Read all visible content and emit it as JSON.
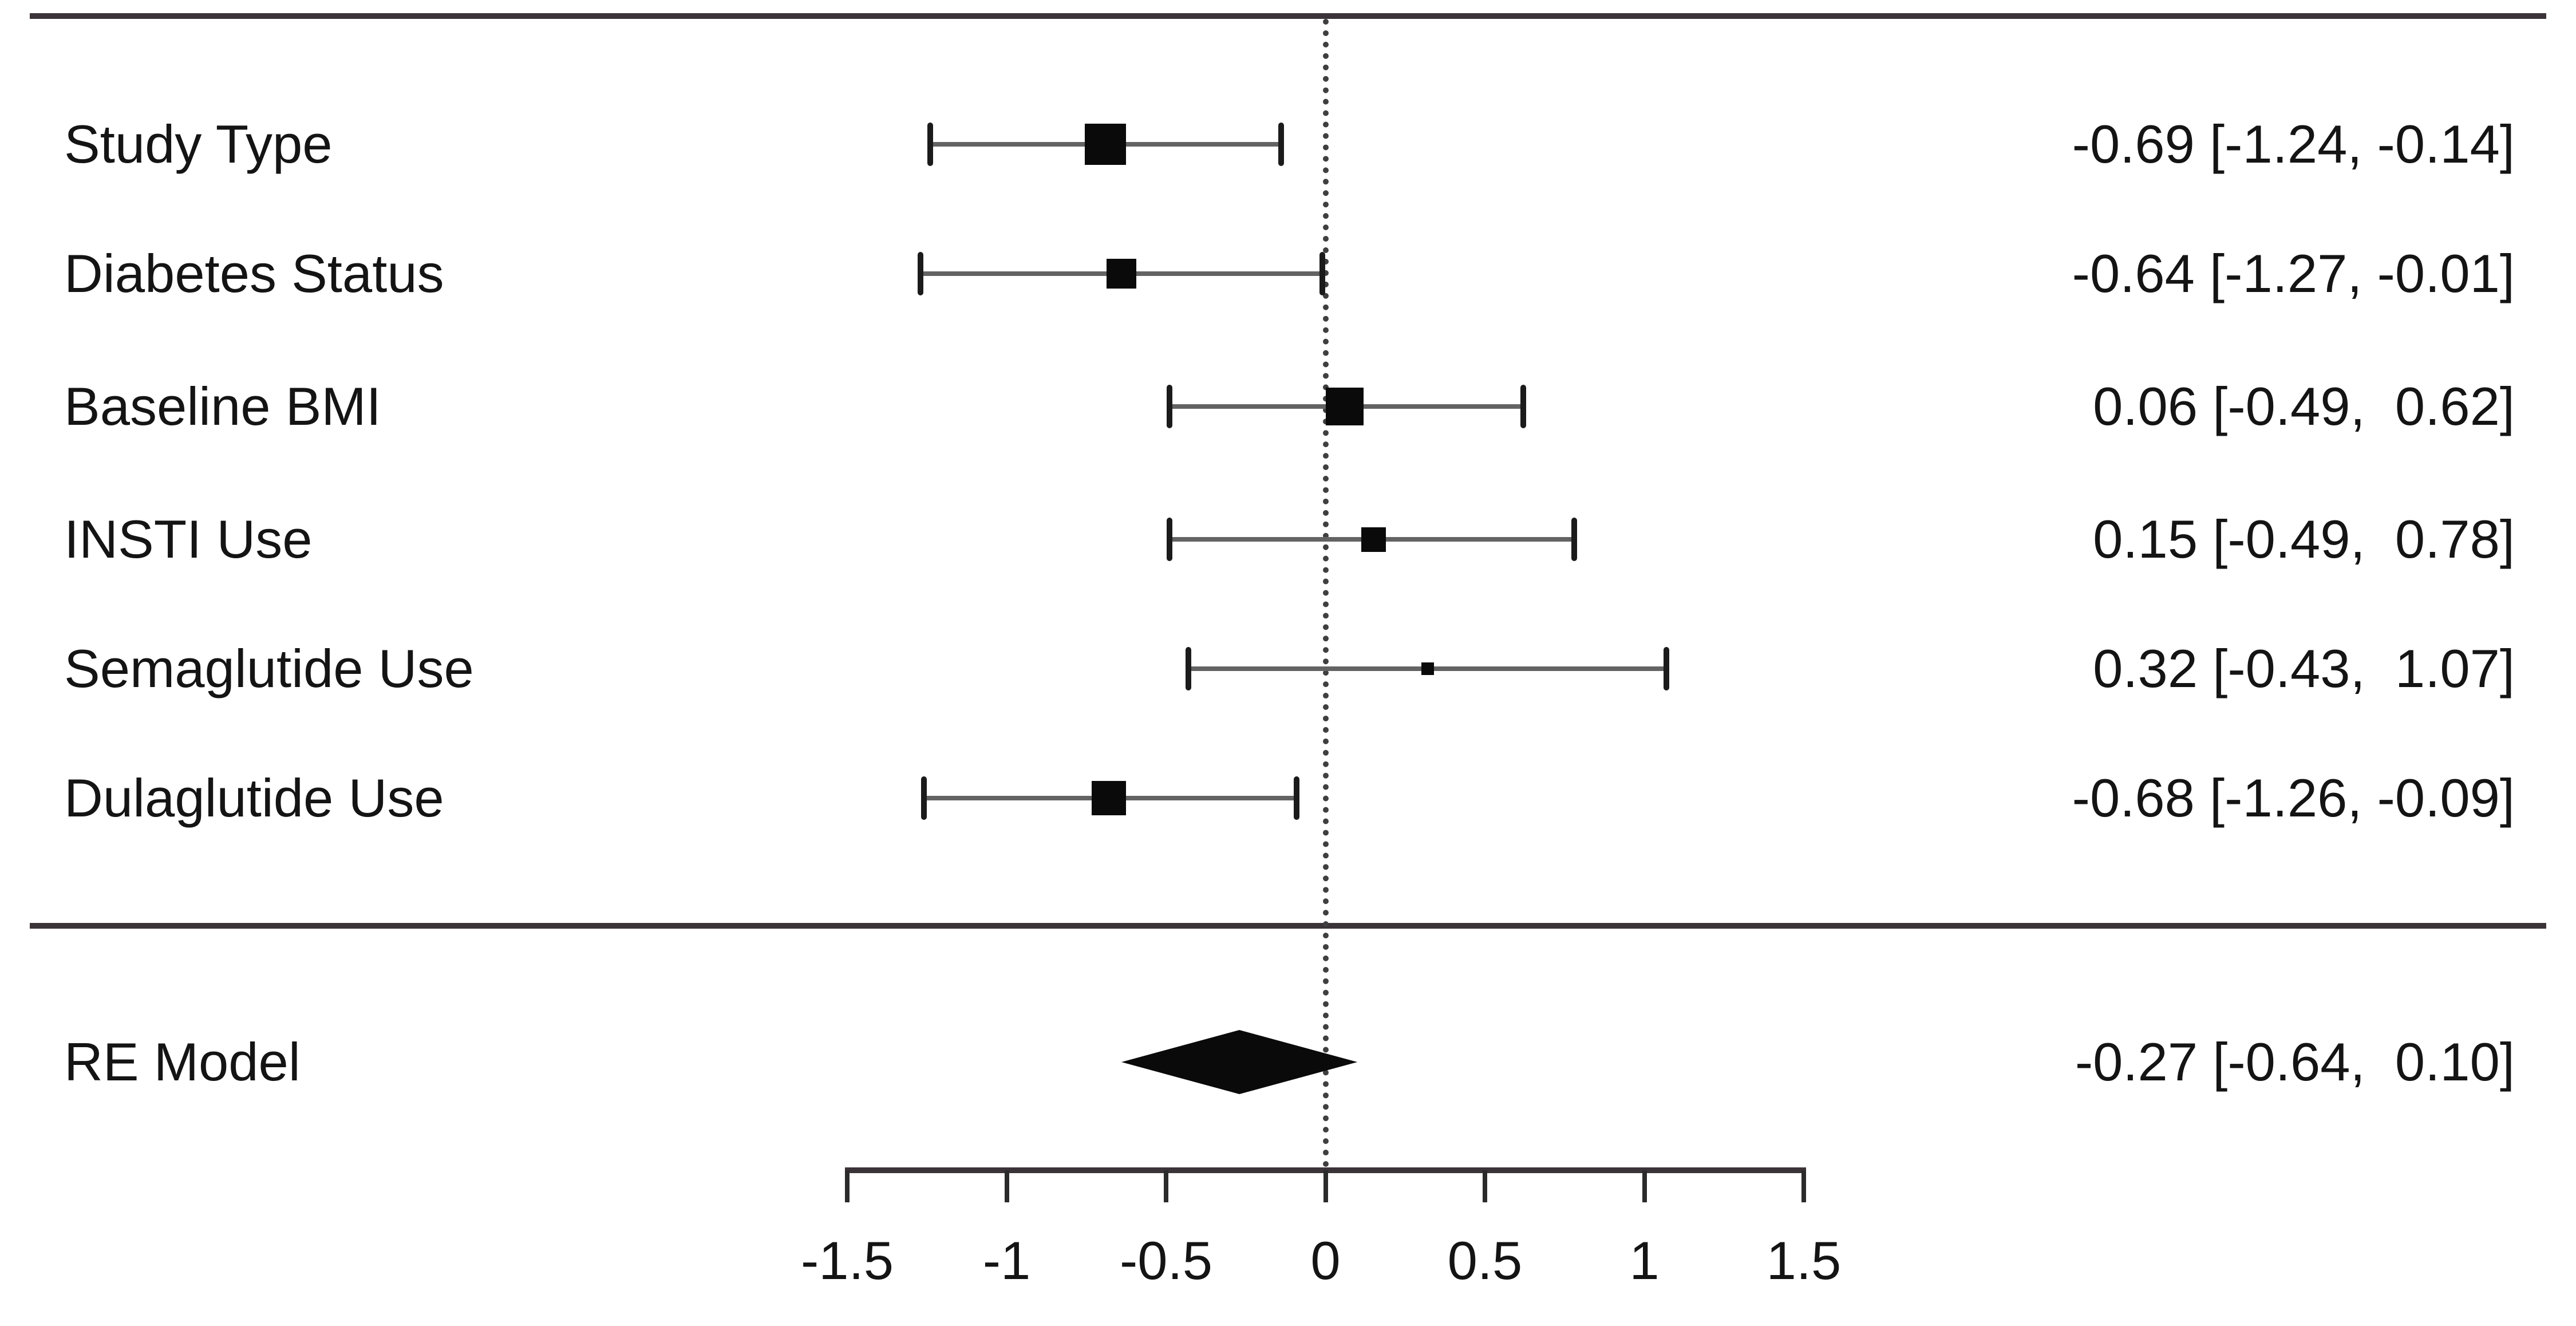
{
  "chart_data": {
    "type": "forest",
    "rows": [
      {
        "label": "Study Type",
        "estimate": -0.69,
        "ci_low": -1.24,
        "ci_high": -0.14,
        "annotation": "-0.69 [-1.24, -0.14]",
        "marker_px": 72
      },
      {
        "label": "Diabetes Status",
        "estimate": -0.64,
        "ci_low": -1.27,
        "ci_high": -0.01,
        "annotation": "-0.64 [-1.27, -0.01]",
        "marker_px": 52
      },
      {
        "label": "Baseline BMI",
        "estimate": 0.06,
        "ci_low": -0.49,
        "ci_high": 0.62,
        "annotation": "0.06 [-0.49,  0.62]",
        "marker_px": 66
      },
      {
        "label": "INSTI Use",
        "estimate": 0.15,
        "ci_low": -0.49,
        "ci_high": 0.78,
        "annotation": "0.15 [-0.49,  0.78]",
        "marker_px": 43
      },
      {
        "label": "Semaglutide Use",
        "estimate": 0.32,
        "ci_low": -0.43,
        "ci_high": 1.07,
        "annotation": "0.32 [-0.43,  1.07]",
        "marker_px": 22
      },
      {
        "label": "Dulaglutide Use",
        "estimate": -0.68,
        "ci_low": -1.26,
        "ci_high": -0.09,
        "annotation": "-0.68 [-1.26, -0.09]",
        "marker_px": 60
      }
    ],
    "summary": {
      "label": "RE Model",
      "estimate": -0.27,
      "ci_low": -0.64,
      "ci_high": 0.1,
      "annotation": "-0.27 [-0.64,  0.10]"
    },
    "xaxis": {
      "min": -1.5,
      "max": 1.5,
      "zero_reference": 0,
      "ticks": [
        -1.5,
        -1,
        -0.5,
        0,
        0.5,
        1,
        1.5
      ],
      "tick_labels": [
        "-1.5",
        "-1",
        "-0.5",
        "0",
        "0.5",
        "1",
        "1.5"
      ]
    },
    "colors": {
      "background": "#ffffff",
      "marker": "#0a0a0a",
      "ci_line": "#636363",
      "ci_cap": "#1b1b1b",
      "rule": "#3a3337",
      "dotted_line": "#3f3f3f",
      "text": "#141414"
    },
    "legend": null,
    "grid": false
  }
}
